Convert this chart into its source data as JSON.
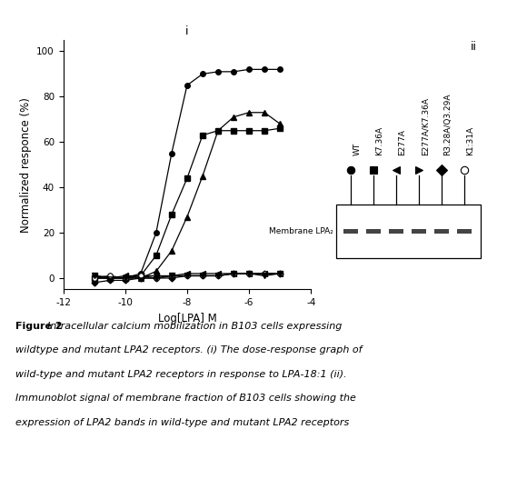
{
  "title_i": "i",
  "title_ii": "ii",
  "xlabel": "Log[LPA] M",
  "ylabel": "Normalized responce (%)",
  "xlim": [
    -12,
    -4
  ],
  "ylim": [
    -5,
    105
  ],
  "xticks": [
    -12,
    -10,
    -8,
    -6,
    -4
  ],
  "yticks": [
    0,
    20,
    40,
    60,
    80,
    100
  ],
  "wt_x": [
    -11,
    -10.5,
    -10,
    -9.5,
    -9,
    -8.5,
    -8,
    -7.5,
    -7,
    -6.5,
    -6,
    -5.5,
    -5
  ],
  "wt_y": [
    0,
    0,
    0,
    2,
    20,
    55,
    85,
    90,
    91,
    91,
    92,
    92,
    92
  ],
  "k736a_x": [
    -11,
    -10.5,
    -10,
    -9.5,
    -9,
    -8.5,
    -8,
    -7.5,
    -7,
    -6.5,
    -6,
    -5.5,
    -5
  ],
  "k736a_y": [
    0,
    0,
    0,
    1,
    10,
    28,
    44,
    63,
    65,
    65,
    65,
    65,
    66
  ],
  "e277a_x": [
    -11,
    -10.5,
    -10,
    -9.5,
    -9,
    -8.5,
    -8,
    -7.5,
    -7,
    -6.5,
    -6,
    -5.5,
    -5
  ],
  "e277a_y": [
    0,
    0,
    0,
    0,
    3,
    12,
    27,
    45,
    65,
    71,
    73,
    73,
    68
  ],
  "e277a_k736a_x": [
    -11,
    -10.5,
    -10,
    -9.5,
    -9,
    -8.5,
    -8,
    -7.5,
    -7,
    -6.5,
    -6,
    -5.5,
    -5
  ],
  "e277a_k736a_y": [
    1,
    0,
    1,
    1,
    1,
    1,
    2,
    2,
    2,
    2,
    2,
    2,
    2
  ],
  "r328a_q329a_x": [
    -11,
    -10.5,
    -10,
    -9.5,
    -9,
    -8.5,
    -8,
    -7.5,
    -7,
    -6.5,
    -6,
    -5.5,
    -5
  ],
  "r328a_q329a_y": [
    -2,
    -1,
    -1,
    0,
    0,
    0,
    1,
    1,
    1,
    2,
    2,
    2,
    2
  ],
  "k131a_x": [
    -11,
    -10.5,
    -10,
    -9.5,
    -9,
    -8.5,
    -8,
    -7.5,
    -7,
    -6.5,
    -6,
    -5.5,
    -5
  ],
  "k131a_y": [
    0,
    1,
    0,
    1,
    0,
    1,
    1,
    1,
    1,
    2,
    2,
    2,
    2
  ],
  "wt_down_x": [
    -11,
    -10,
    -9,
    -8.5,
    -8,
    -7.5,
    -7,
    -6.5,
    -6,
    -5.5,
    -5
  ],
  "wt_down_y": [
    1,
    0,
    0,
    1,
    1,
    1,
    1,
    2,
    2,
    1,
    2
  ],
  "lane_labels": [
    "WT",
    "K7.36A",
    "E277A",
    "E277A/K7.36A",
    "R3.28A/Q3.29A",
    "K1:31A"
  ],
  "membrane_label": "Membrane LPA₂",
  "background_color": "#ffffff",
  "line_color": "#000000",
  "caption_bold": "Figure 2",
  "caption_italic": ". Intracellular calcium mobilization in B103 cells expressing wildtype and mutant LPA2 receptors. (i) The dose-response graph of wild-type and mutant LPA2 receptors in response to LPA-18:1 (ii). Immunoblot signal of membrane fraction of B103 cells showing the expression of LPA2 bands in wild-type and mutant LPA2 receptors"
}
